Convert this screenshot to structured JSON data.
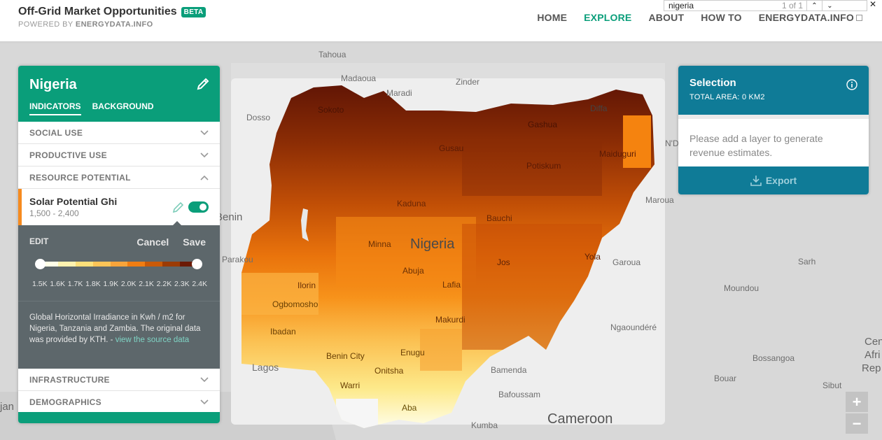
{
  "header": {
    "title": "Off-Grid Market Opportunities",
    "beta": "BETA",
    "powered_prefix": "POWERED BY ",
    "powered_brand": "ENERGYDATA.INFO",
    "nav": [
      {
        "label": "HOME",
        "active": false
      },
      {
        "label": "EXPLORE",
        "active": true
      },
      {
        "label": "ABOUT",
        "active": false
      },
      {
        "label": "HOW TO",
        "active": false
      },
      {
        "label": "ENERGYDATA.INFO",
        "active": false
      }
    ]
  },
  "findbar": {
    "query": "nigeria",
    "count": "1 of 1",
    "up": "⌃",
    "down": "⌄",
    "close": "✕"
  },
  "panel": {
    "title": "Nigeria",
    "tabs": [
      "INDICATORS",
      "BACKGROUND"
    ],
    "sections": {
      "social_use": "SOCIAL USE",
      "productive_use": "PRODUCTIVE USE",
      "resource_potential": "RESOURCE POTENTIAL",
      "infrastructure": "INFRASTRUCTURE",
      "demographics": "DEMOGRAPHICS"
    },
    "layer": {
      "name": "Solar Potential Ghi",
      "range": "1,500 - 2,400",
      "enabled": true
    },
    "edit": {
      "label": "EDIT",
      "cancel": "Cancel",
      "save": "Save",
      "ramp_colors": [
        "#ffffe8",
        "#fff3b0",
        "#fde07a",
        "#fcc457",
        "#f8a43a",
        "#f07d12",
        "#c95a08",
        "#9b3b05",
        "#6b1a05"
      ],
      "ticks": [
        "1.5K",
        "1.6K",
        "1.7K",
        "1.8K",
        "1.9K",
        "2.0K",
        "2.1K",
        "2.2K",
        "2.3K",
        "2.4K"
      ],
      "description": "Global Horizontal Irradiance in Kwh / m2 for Nigeria, Tanzania and Zambia.  The original data was provided by KTH. - ",
      "link": "view the source data"
    }
  },
  "selection": {
    "title": "Selection",
    "subtitle": "TOTAL AREA: 0 KM2",
    "message": "Please add a layer to generate revenue estimates.",
    "export": "Export"
  },
  "zoom": {
    "in": "+",
    "out": "−"
  },
  "map": {
    "labels": [
      "Tahoua",
      "Madaoua",
      "Maradi",
      "Zinder",
      "Diffa",
      "Dosso",
      "Sokoto",
      "Gashua",
      "Gusau",
      "Maiduguri",
      "Potiskum",
      "N'D",
      "Benin",
      "Kaduna",
      "Bauchi",
      "Maroua",
      "Nigeria",
      "Minna",
      "Parakou",
      "Jos",
      "Yola",
      "Garoua",
      "Sarh",
      "Abuja",
      "Ilorin",
      "Lafia",
      "Moundou",
      "Ogbomosho",
      "Ibadan",
      "Makurdi",
      "Ngaoundéré",
      "Benin City",
      "Enugu",
      "Onitsha",
      "Lagos",
      "Bamenda",
      "Bossangoa",
      "Warri",
      "Bafoussam",
      "Bouar",
      "Sibut",
      "Aba",
      "Kumba",
      "Cameroon",
      "Cen",
      "Afri",
      "Rep",
      "jan"
    ]
  }
}
